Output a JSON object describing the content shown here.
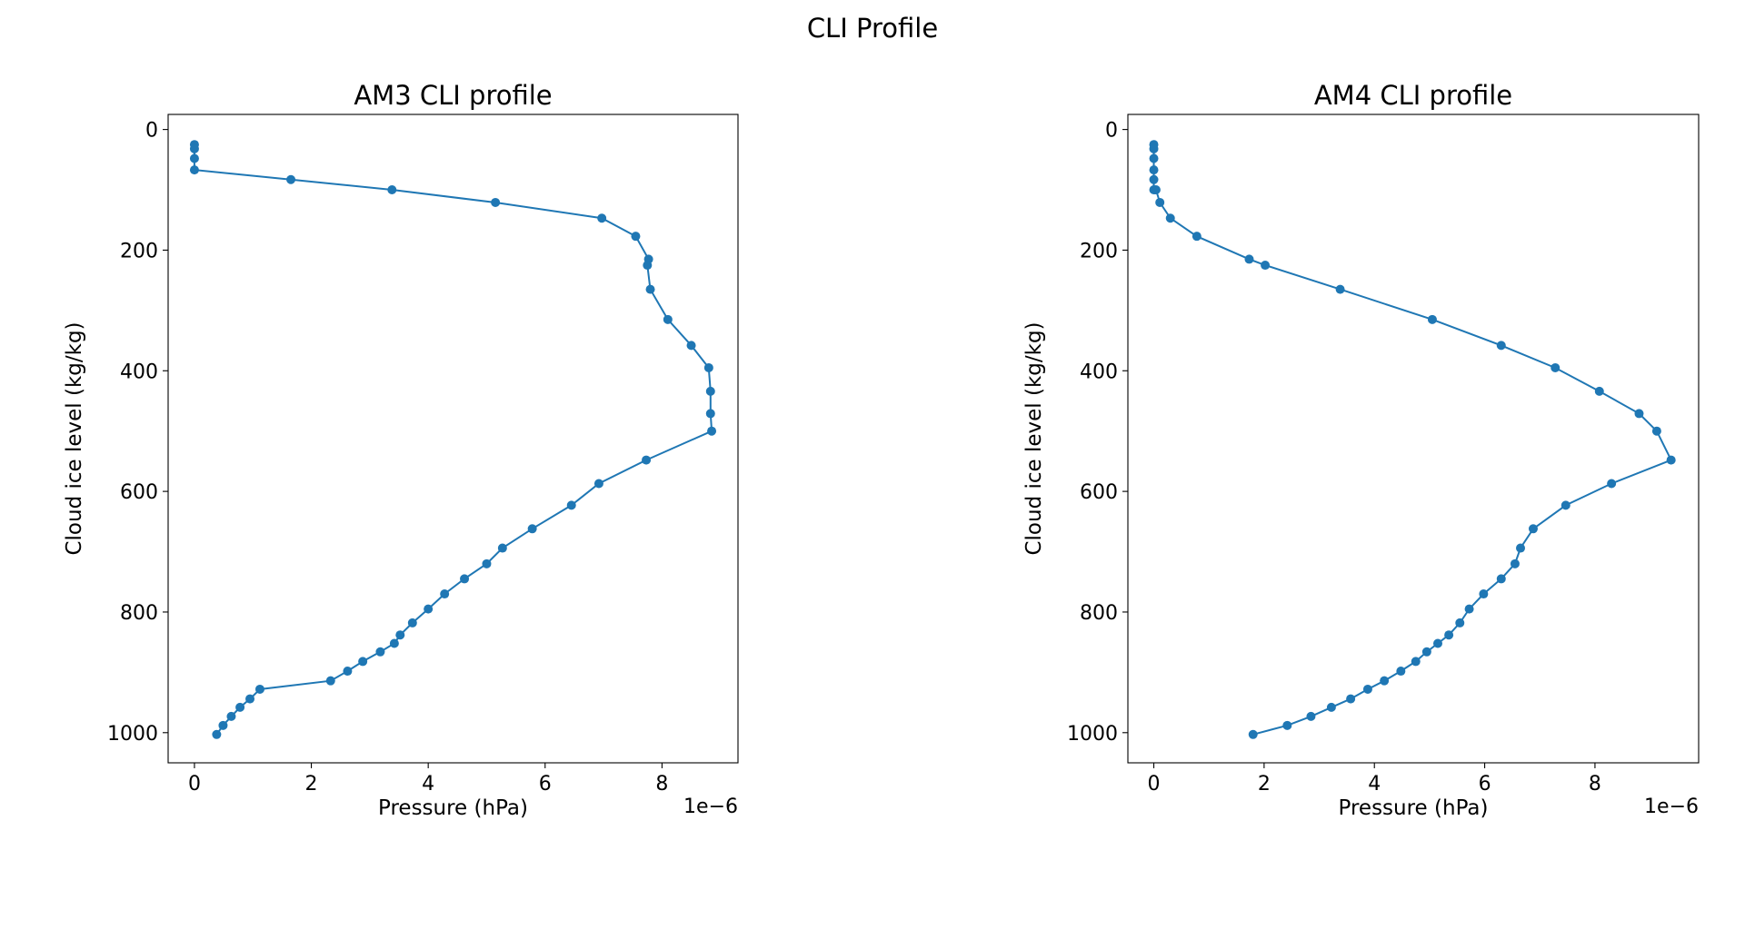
{
  "figure": {
    "suptitle": "CLI Profile",
    "line_color": "#1f77b4"
  },
  "chart_data": [
    {
      "type": "line",
      "title": "AM3 CLI profile",
      "xlabel": "Pressure (hPa)",
      "ylabel": "Cloud ice level (kg/kg)",
      "x_offset_label": "1e−6",
      "xlim": [
        -0.45,
        9.3
      ],
      "ylim": [
        1050,
        -25
      ],
      "y_inverted": true,
      "xticks": [
        0,
        2,
        4,
        6,
        8
      ],
      "xtick_labels": [
        "0",
        "2",
        "4",
        "6",
        "8"
      ],
      "yticks": [
        0,
        200,
        400,
        600,
        800,
        1000
      ],
      "ytick_labels": [
        "0",
        "200",
        "400",
        "600",
        "800",
        "1000"
      ],
      "grid": false,
      "legend": "none",
      "series": [
        {
          "x": [
            0.0,
            0.0,
            0.0,
            0.0,
            1.65,
            3.38,
            5.15,
            6.97,
            7.55,
            7.77,
            7.75,
            7.8,
            8.1,
            8.5,
            8.8,
            8.83,
            8.83,
            8.85,
            7.73,
            6.92,
            6.45,
            5.78,
            5.27,
            5.0,
            4.62,
            4.28,
            4.0,
            3.73,
            3.52,
            3.42,
            3.18,
            2.88,
            2.62,
            2.33,
            1.12,
            0.95,
            0.78,
            0.63,
            0.49,
            0.38
          ],
          "y": [
            25,
            32,
            48,
            67,
            83,
            100,
            121,
            147,
            177,
            215,
            225,
            265,
            315,
            358,
            395,
            434,
            471,
            500,
            548,
            587,
            623,
            662,
            694,
            720,
            745,
            770,
            795,
            818,
            838,
            852,
            866,
            882,
            898,
            914,
            928,
            944,
            958,
            973,
            988,
            1003
          ]
        }
      ]
    },
    {
      "type": "line",
      "title": "AM4 CLI profile",
      "xlabel": "Pressure (hPa)",
      "ylabel": "Cloud ice level (kg/kg)",
      "x_offset_label": "1e−6",
      "xlim": [
        -0.47,
        9.88
      ],
      "ylim": [
        1050,
        -25
      ],
      "y_inverted": true,
      "xticks": [
        0,
        2,
        4,
        6,
        8
      ],
      "xtick_labels": [
        "0",
        "2",
        "4",
        "6",
        "8"
      ],
      "yticks": [
        0,
        200,
        400,
        600,
        800,
        1000
      ],
      "ytick_labels": [
        "0",
        "200",
        "400",
        "600",
        "800",
        "1000"
      ],
      "grid": false,
      "legend": "none",
      "series": [
        {
          "x": [
            0.0,
            0.0,
            0.0,
            0.0,
            0.0,
            0.0,
            0.04,
            0.11,
            0.3,
            0.78,
            1.73,
            2.02,
            3.38,
            5.05,
            6.3,
            7.28,
            8.08,
            8.8,
            9.12,
            9.38,
            8.3,
            7.47,
            6.88,
            6.65,
            6.55,
            6.3,
            5.98,
            5.72,
            5.55,
            5.35,
            5.15,
            4.95,
            4.75,
            4.48,
            4.18,
            3.88,
            3.57,
            3.22,
            2.85,
            2.42,
            1.8
          ],
          "y": [
            25,
            32,
            48,
            67,
            83,
            100,
            100,
            121,
            147,
            177,
            215,
            225,
            265,
            315,
            358,
            395,
            434,
            471,
            500,
            548,
            587,
            623,
            662,
            694,
            720,
            745,
            770,
            795,
            818,
            838,
            852,
            866,
            882,
            898,
            914,
            928,
            944,
            958,
            973,
            988,
            1003
          ]
        }
      ]
    }
  ]
}
